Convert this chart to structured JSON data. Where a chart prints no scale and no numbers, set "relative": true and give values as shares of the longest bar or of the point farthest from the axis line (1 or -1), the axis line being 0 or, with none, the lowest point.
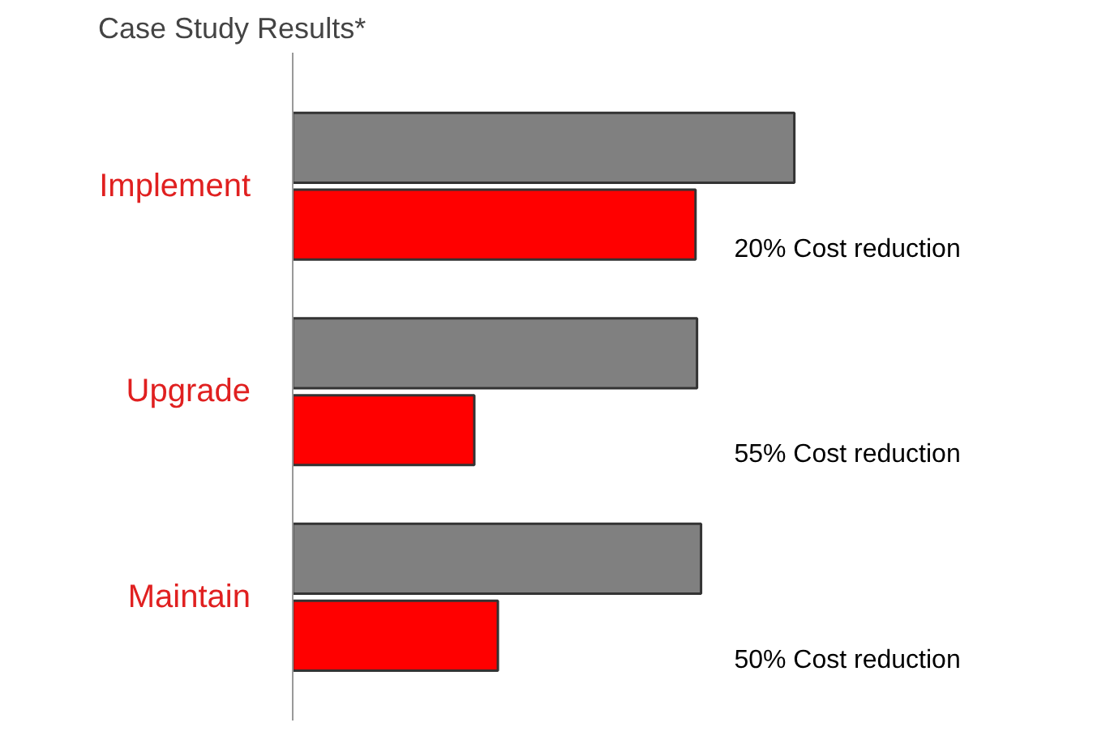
{
  "chart_data": {
    "type": "bar",
    "orientation": "horizontal",
    "relative": true,
    "title": "Case Study Results*",
    "categories": [
      "Implement",
      "Upgrade",
      "Maintain"
    ],
    "series": [
      {
        "color": "#808080",
        "values": [
          1,
          0.806,
          0.814
        ]
      },
      {
        "color": "#ff0000",
        "values": [
          0.803,
          0.362,
          0.409
        ]
      }
    ],
    "annotations": [
      "20% Cost reduction",
      "55% Cost reduction",
      "50% Cost reduction"
    ],
    "grid": false
  }
}
